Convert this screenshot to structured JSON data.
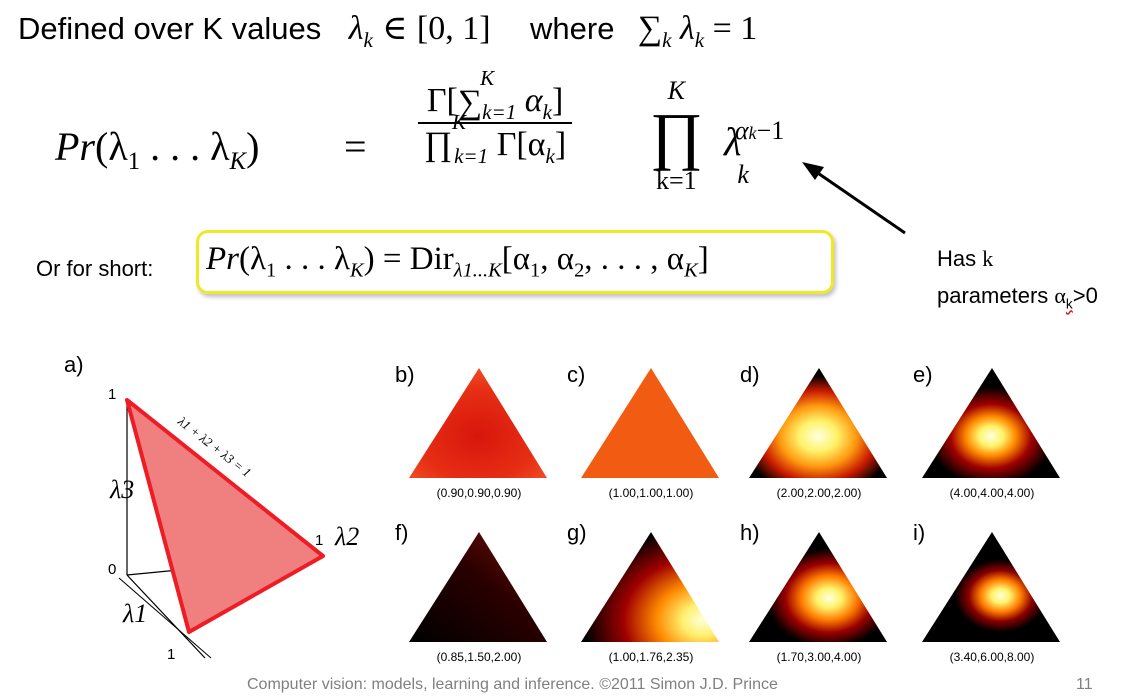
{
  "header": {
    "defined_text": "Defined over K values",
    "lambda_k": "λ",
    "sub_k": "k",
    "in_symbol": "∈",
    "interval": "[0, 1]",
    "where_text": "where",
    "sum_symbol": "∑",
    "equals_one": "= 1"
  },
  "equation": {
    "lhs_pr": "Pr",
    "lhs_args": "(λ",
    "sub_1": "1",
    "dots": " . . . λ",
    "sub_K": "K",
    "close": ")",
    "equals": "=",
    "numerator_gamma": "Γ[",
    "sum_symbol": "∑",
    "sum_upper": "K",
    "sum_lower": "k=1",
    "alpha": "α",
    "bracket_close": "]",
    "product_symbol": "∏",
    "den_gamma": "Γ[α",
    "big_prod_upper": "K",
    "big_prod_lower": "k=1",
    "rhs_lambda": "λ",
    "rhs_exp_alpha": "α",
    "rhs_exp_minus": "−1"
  },
  "shorthand": {
    "label": "Or for short:",
    "lhs": "Pr",
    "args": "(λ",
    "sub_1": "1",
    "dots": " . . . λ",
    "sub_K": "K",
    "close": ") = ",
    "dir": "Dir",
    "dir_sub": "λ1...K",
    "params": "[α",
    "params_mid": ", α",
    "params_dots": ", . . . , α",
    "params_close": "]"
  },
  "annotation": {
    "line1_text": "Has ",
    "line1_k": "k",
    "line2_text": "parameters ",
    "line2_alpha": "α",
    "line2_sub": "k",
    "line2_end": ">0"
  },
  "simplex": {
    "label": "a)",
    "tick_1_top": "1",
    "tick_1_right": "1",
    "tick_1_bottom": "1",
    "tick_0": "0",
    "axis_l3": "λ3",
    "axis_l2": "λ2",
    "axis_l1": "λ1",
    "constraint": "λ1 + λ2 + λ3 = 1"
  },
  "panels": [
    {
      "label": "b)",
      "caption": "(0.90,0.90,0.90)"
    },
    {
      "label": "c)",
      "caption": "(1.00,1.00,1.00)"
    },
    {
      "label": "d)",
      "caption": "(2.00,2.00,2.00)"
    },
    {
      "label": "e)",
      "caption": "(4.00,4.00,4.00)"
    },
    {
      "label": "f)",
      "caption": "(0.85,1.50,2.00)"
    },
    {
      "label": "g)",
      "caption": "(1.00,1.76,2.35)"
    },
    {
      "label": "h)",
      "caption": "(1.70,3.00,4.00)"
    },
    {
      "label": "i)",
      "caption": "(3.40,6.00,8.00)"
    }
  ],
  "footer": {
    "credit": "Computer vision: models, learning and inference.  ©2011 Simon J.D. Prince",
    "page": "11"
  },
  "colors": {
    "highlight_border": "#f0e826",
    "simplex_fill": "#f08080",
    "simplex_edge": "#ee1c24",
    "footer_text": "#808080"
  }
}
